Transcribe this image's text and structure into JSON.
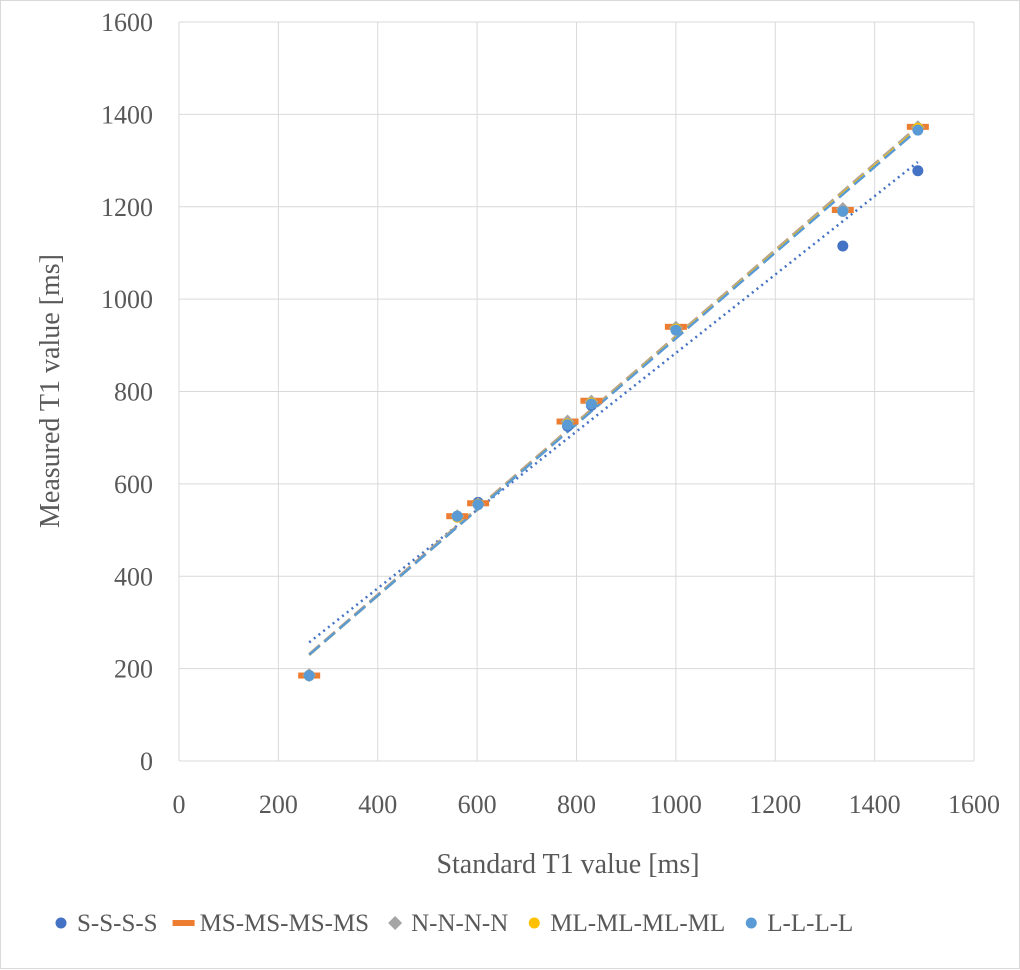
{
  "chart_data": {
    "type": "scatter",
    "title": "",
    "xlabel": "Standard T1 value [ms]",
    "ylabel": "Measured T1 value [ms]",
    "xlim": [
      0,
      1600
    ],
    "ylim": [
      0,
      1600
    ],
    "xticks": [
      0,
      200,
      400,
      600,
      800,
      1000,
      1200,
      1400,
      1600
    ],
    "yticks": [
      0,
      200,
      400,
      600,
      800,
      1000,
      1200,
      1400,
      1600
    ],
    "grid": true,
    "legend_position": "bottom",
    "series": [
      {
        "name": "S-S-S-S",
        "marker": "circle",
        "color": "#4472c4",
        "trendline": "dotted",
        "points": [
          [
            262,
            185
          ],
          [
            560,
            530
          ],
          [
            602,
            560
          ],
          [
            782,
            725
          ],
          [
            830,
            770
          ],
          [
            1000,
            935
          ],
          [
            1336,
            1115
          ],
          [
            1487,
            1278
          ]
        ]
      },
      {
        "name": "MS-MS-MS-MS",
        "marker": "dash",
        "color": "#ed7d31",
        "trendline": "dashed",
        "points": [
          [
            262,
            185
          ],
          [
            560,
            530
          ],
          [
            602,
            558
          ],
          [
            782,
            735
          ],
          [
            830,
            780
          ],
          [
            1000,
            940
          ],
          [
            1336,
            1193
          ],
          [
            1487,
            1373
          ]
        ]
      },
      {
        "name": "N-N-N-N",
        "marker": "diamond",
        "color": "#a5a5a5",
        "trendline": "dashed",
        "points": [
          [
            262,
            186
          ],
          [
            560,
            530
          ],
          [
            602,
            556
          ],
          [
            782,
            735
          ],
          [
            830,
            778
          ],
          [
            1000,
            938
          ],
          [
            1336,
            1195
          ],
          [
            1487,
            1372
          ]
        ]
      },
      {
        "name": "ML-ML-ML-ML",
        "marker": "circle",
        "color": "#ffc000",
        "trendline": "dashed",
        "points": [
          [
            262,
            185
          ],
          [
            560,
            528
          ],
          [
            602,
            556
          ],
          [
            782,
            730
          ],
          [
            830,
            775
          ],
          [
            1000,
            935
          ],
          [
            1336,
            1190
          ],
          [
            1487,
            1370
          ]
        ]
      },
      {
        "name": "L-L-L-L",
        "marker": "circle",
        "color": "#5b9bd5",
        "trendline": "dashed",
        "points": [
          [
            262,
            185
          ],
          [
            560,
            530
          ],
          [
            602,
            555
          ],
          [
            782,
            728
          ],
          [
            830,
            773
          ],
          [
            1000,
            933
          ],
          [
            1336,
            1190
          ],
          [
            1487,
            1366
          ]
        ]
      }
    ]
  }
}
